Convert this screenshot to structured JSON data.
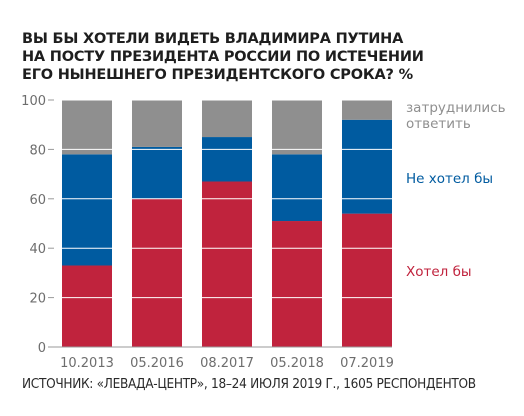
{
  "title_lines": [
    "ВЫ БЫ ХОТЕЛИ ВИДЕТЬ ВЛАДИМИРА ПУТИНА",
    "НА ПОСТУ ПРЕЗИДЕНТА РОССИИ ПО ИСТЕЧЕНИИ",
    "ЕГО НЫНЕШНЕГО ПРЕЗИДЕНТСКОГО СРОКА? %"
  ],
  "source": "ИСТОЧНИК: «ЛЕВАДА-ЦЕНТР», 18–24 ИЮЛЯ 2019 Г., 1605 РЕСПОНДЕНТОВ",
  "colors": {
    "want": "#c0233d",
    "not_want": "#005ba0",
    "undecided": "#8f8f8f",
    "axis_text": "#6d6d6d",
    "grid": "#ffffff",
    "gap": "#ffffff"
  },
  "chart_data": {
    "type": "bar",
    "stacked": true,
    "categories": [
      "10.2013",
      "05.2016",
      "08.2017",
      "05.2018",
      "07.2019"
    ],
    "series": [
      {
        "name": "Хотел бы",
        "color_key": "want",
        "values": [
          33,
          60,
          67,
          51,
          54
        ]
      },
      {
        "name": "Не хотел бы",
        "color_key": "not_want",
        "values": [
          45,
          21,
          18,
          27,
          38
        ]
      },
      {
        "name": "затруднились ответить",
        "color_key": "undecided",
        "values": [
          22,
          19,
          15,
          22,
          8
        ]
      }
    ],
    "legend_labels": [
      {
        "lines": [
          "затруднились",
          "ответить"
        ],
        "color_key": "undecided"
      },
      {
        "lines": [
          "Не хотел бы"
        ],
        "color_key": "not_want"
      },
      {
        "lines": [
          "Хотел бы"
        ],
        "color_key": "want"
      }
    ],
    "yticks": [
      0,
      20,
      40,
      60,
      80,
      100
    ],
    "ylim": [
      0,
      100
    ],
    "grid": true,
    "legend_position": "right"
  }
}
